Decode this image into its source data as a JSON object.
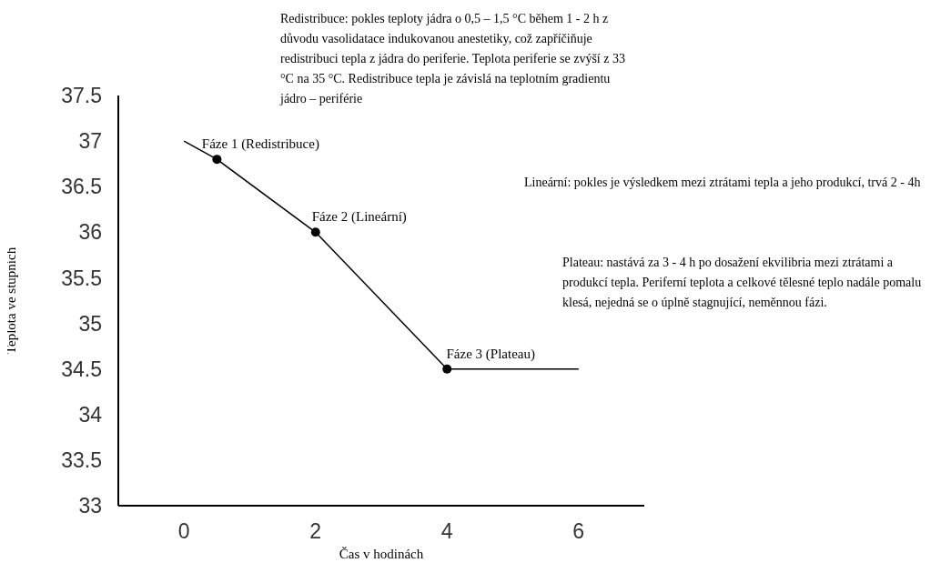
{
  "chart_data": {
    "type": "line",
    "xlabel": "Čas v hodinách",
    "ylabel": "Teplota ve stupních",
    "xlim": [
      -1,
      7
    ],
    "xticks": [
      0,
      2,
      4,
      6
    ],
    "ylim": [
      33,
      37.5
    ],
    "yticks": [
      33,
      33.5,
      34,
      34.5,
      35,
      35.5,
      36,
      36.5,
      37,
      37.5
    ],
    "series": [
      {
        "color": "#000000",
        "marker": "none",
        "line_style": "solid",
        "x": [
          0,
          0.5,
          2,
          4,
          6
        ],
        "values": [
          37,
          36.8,
          36,
          34.5,
          34.5
        ]
      },
      {
        "type": "scatter",
        "color": "#000000",
        "marker": "circle",
        "x": [
          0.5,
          2,
          4
        ],
        "values": [
          36.8,
          36,
          34.5
        ]
      }
    ],
    "annotations": [
      {
        "text": "Fáze 1 (Redistribuce)",
        "x": 0.5,
        "y": 36.8
      },
      {
        "text": "Fáze 2 (Lineární)",
        "x": 2,
        "y": 36
      },
      {
        "text": "Fáze 3 (Plateau)",
        "x": 4,
        "y": 34.5
      },
      "Redistribuce: pokles teploty jádra o 0,5 – 1,5 °C během 1 - 2 h z důvodu vasolidatace indukovanou anestetiky, což zapříčiňuje redistribuci tepla z jádra do periferie. Teplota periferie se zvýší z 33 °C na 35 °C. Redistribuce tepla je závislá na teplotním gradientu jádro – periférie",
      "Lineární: pokles je výsledkem mezi ztrátami tepla a jeho produkcí, trvá 2 - 4h",
      "Plateau: nastává za 3 - 4 h po dosažení ekvilibria mezi ztrátami a produkcí tepla. Periferní teplota a celkové tělesné teplo nadále pomalu klesá, nejedná se o úplně stagnující, neměnnou fázi."
    ]
  }
}
